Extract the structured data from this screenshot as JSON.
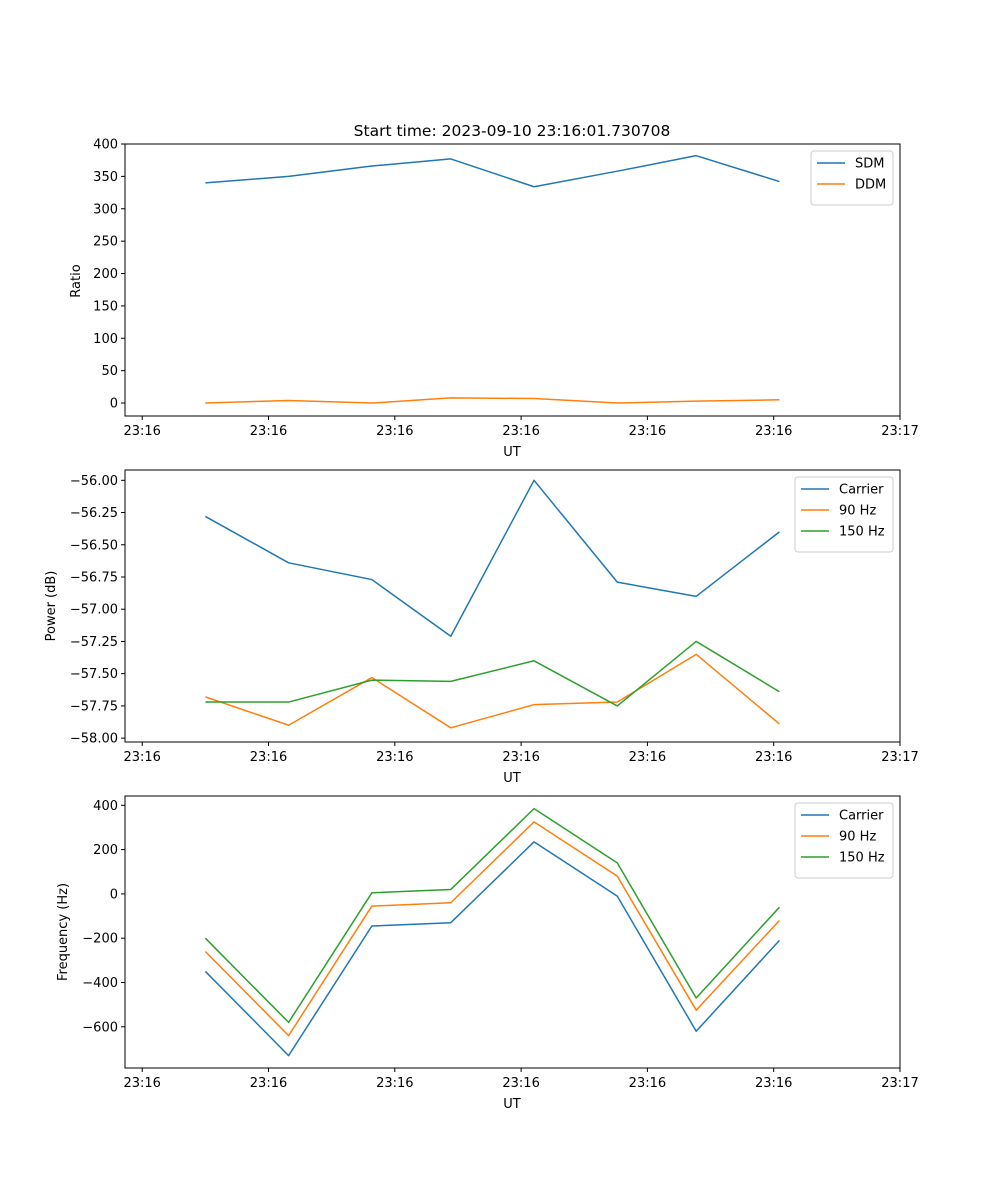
{
  "chart_data": [
    {
      "type": "line",
      "title": "Start time: 2023-09-10 23:16:01.730708",
      "xlabel": "UT",
      "ylabel": "Ratio",
      "xlim": [
        -0.12,
        5.28
      ],
      "ylim": [
        -20,
        400
      ],
      "x_ticks": [
        0,
        0.88,
        1.76,
        2.64,
        3.52,
        4.4,
        5.28
      ],
      "x_tick_labels": [
        "23:16",
        "23:16",
        "23:16",
        "23:16",
        "23:16",
        "23:16",
        "23:17"
      ],
      "y_ticks": [
        0,
        50,
        100,
        150,
        200,
        250,
        300,
        350,
        400
      ],
      "y_tick_labels": [
        "0",
        "50",
        "100",
        "150",
        "200",
        "250",
        "300",
        "350",
        "400"
      ],
      "legend_position": "top-right",
      "x": [
        0.44,
        1.02,
        1.6,
        2.15,
        2.73,
        3.31,
        3.86,
        4.44
      ],
      "series": [
        {
          "name": "SDM",
          "color": "#1f77b4",
          "values": [
            340,
            350,
            366,
            377,
            334,
            358,
            382,
            342
          ]
        },
        {
          "name": "DDM",
          "color": "#ff7f0e",
          "values": [
            0,
            4,
            0,
            8,
            7,
            0,
            3,
            5
          ]
        }
      ]
    },
    {
      "type": "line",
      "title": "",
      "xlabel": "UT",
      "ylabel": "Power (dB)",
      "xlim": [
        -0.12,
        5.28
      ],
      "ylim": [
        -58.03,
        -55.92
      ],
      "x_ticks": [
        0,
        0.88,
        1.76,
        2.64,
        3.52,
        4.4,
        5.28
      ],
      "x_tick_labels": [
        "23:16",
        "23:16",
        "23:16",
        "23:16",
        "23:16",
        "23:16",
        "23:17"
      ],
      "y_ticks": [
        -58.0,
        -57.75,
        -57.5,
        -57.25,
        -57.0,
        -56.75,
        -56.5,
        -56.25,
        -56.0
      ],
      "y_tick_labels": [
        "−58.00",
        "−57.75",
        "−57.50",
        "−57.25",
        "−57.00",
        "−56.75",
        "−56.50",
        "−56.25",
        "−56.00"
      ],
      "legend_position": "top-right",
      "x": [
        0.44,
        1.02,
        1.6,
        2.15,
        2.73,
        3.31,
        3.86,
        4.44
      ],
      "series": [
        {
          "name": "Carrier",
          "color": "#1f77b4",
          "values": [
            -56.28,
            -56.64,
            -56.77,
            -57.21,
            -56.0,
            -56.79,
            -56.9,
            -56.4
          ]
        },
        {
          "name": "90 Hz",
          "color": "#ff7f0e",
          "values": [
            -57.68,
            -57.9,
            -57.53,
            -57.92,
            -57.74,
            -57.72,
            -57.35,
            -57.89
          ]
        },
        {
          "name": "150 Hz",
          "color": "#2ca02c",
          "values": [
            -57.72,
            -57.72,
            -57.55,
            -57.56,
            -57.4,
            -57.75,
            -57.25,
            -57.64
          ]
        }
      ]
    },
    {
      "type": "line",
      "title": "",
      "xlabel": "UT",
      "ylabel": "Frequency (Hz)",
      "xlim": [
        -0.12,
        5.28
      ],
      "ylim": [
        -786,
        442
      ],
      "x_ticks": [
        0,
        0.88,
        1.76,
        2.64,
        3.52,
        4.4,
        5.28
      ],
      "x_tick_labels": [
        "23:16",
        "23:16",
        "23:16",
        "23:16",
        "23:16",
        "23:16",
        "23:17"
      ],
      "y_ticks": [
        -600,
        -400,
        -200,
        0,
        200,
        400
      ],
      "y_tick_labels": [
        "−600",
        "−400",
        "−200",
        "0",
        "200",
        "400"
      ],
      "legend_position": "top-right",
      "x": [
        0.44,
        1.02,
        1.6,
        2.15,
        2.73,
        3.31,
        3.86,
        4.44
      ],
      "series": [
        {
          "name": "Carrier",
          "color": "#1f77b4",
          "values": [
            -350,
            -730,
            -145,
            -130,
            235,
            -10,
            -620,
            -210
          ]
        },
        {
          "name": "90 Hz",
          "color": "#ff7f0e",
          "values": [
            -260,
            -640,
            -55,
            -40,
            325,
            80,
            -525,
            -120
          ]
        },
        {
          "name": "150 Hz",
          "color": "#2ca02c",
          "values": [
            -200,
            -580,
            5,
            20,
            385,
            140,
            -470,
            -60
          ]
        }
      ]
    }
  ]
}
